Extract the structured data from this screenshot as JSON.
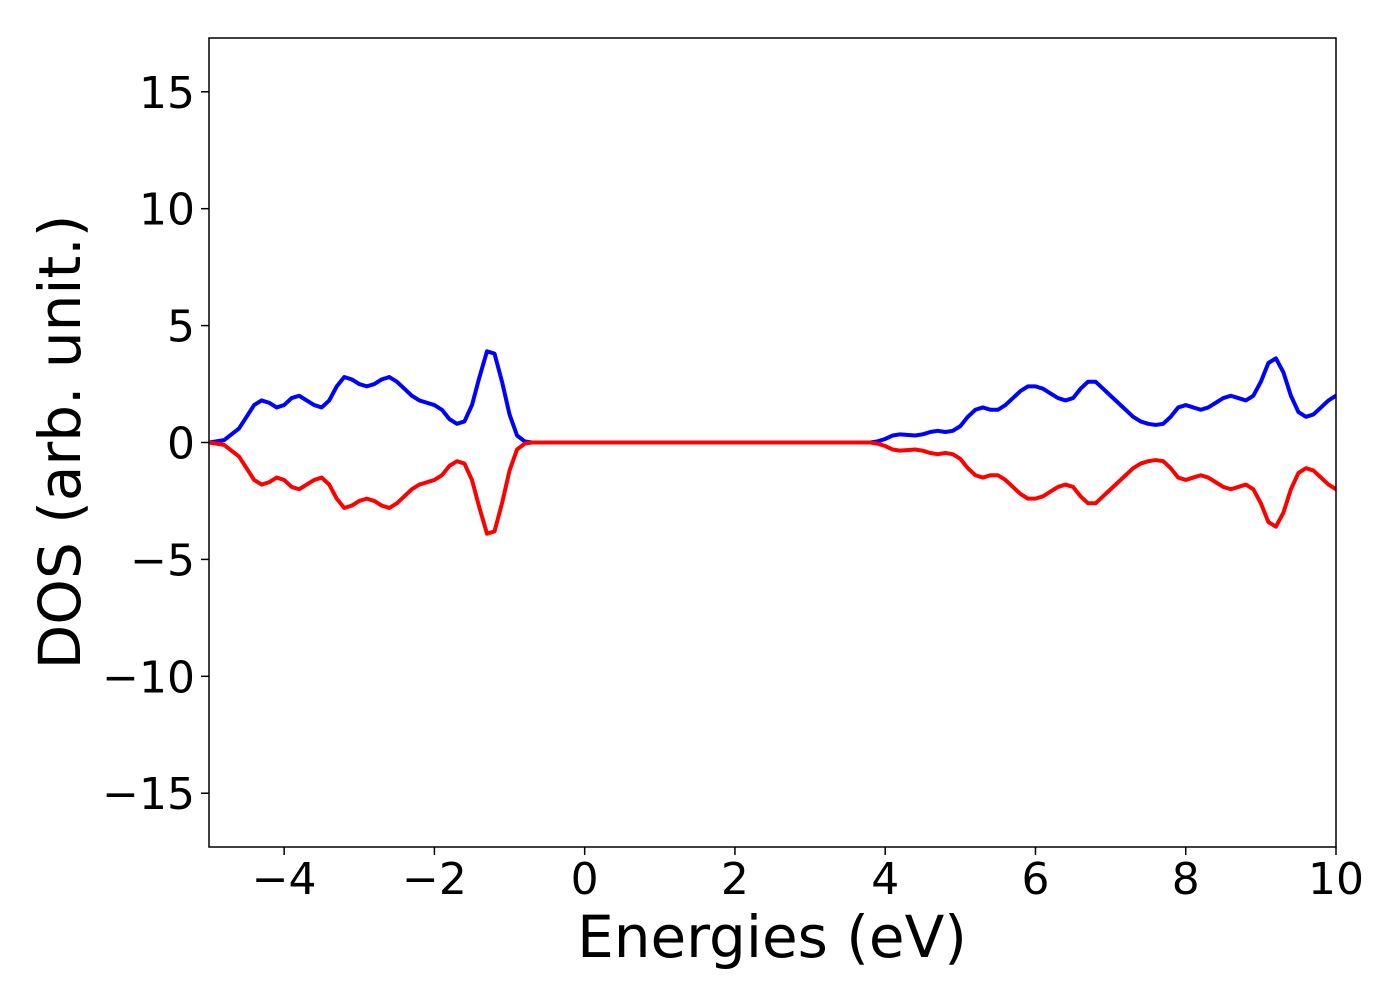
{
  "chart_data": {
    "type": "line",
    "title": "",
    "xlabel": "Energies (eV)",
    "ylabel": "DOS (arb. unit.)",
    "xlim": [
      -5,
      10
    ],
    "ylim": [
      -17.3,
      17.3
    ],
    "xticks": [
      -4,
      -2,
      0,
      2,
      4,
      6,
      8,
      10
    ],
    "xtick_labels": [
      "−4",
      "−2",
      "0",
      "2",
      "4",
      "6",
      "8",
      "10"
    ],
    "yticks": [
      15,
      10,
      5,
      0,
      -5,
      -10,
      -15
    ],
    "ytick_labels": [
      "15",
      "10",
      "5",
      "0",
      "−5",
      "−10",
      "−15"
    ],
    "grid": false,
    "legend": "none",
    "series": [
      {
        "color": "#0000ff",
        "x": [
          -5.0,
          -4.8,
          -4.6,
          -4.5,
          -4.4,
          -4.3,
          -4.2,
          -4.1,
          -4.0,
          -3.9,
          -3.8,
          -3.7,
          -3.6,
          -3.5,
          -3.4,
          -3.3,
          -3.2,
          -3.1,
          -3.0,
          -2.9,
          -2.8,
          -2.7,
          -2.6,
          -2.5,
          -2.4,
          -2.3,
          -2.2,
          -2.1,
          -2.0,
          -1.9,
          -1.8,
          -1.7,
          -1.6,
          -1.5,
          -1.4,
          -1.3,
          -1.2,
          -1.1,
          -1.0,
          -0.9,
          -0.8,
          -0.7,
          -0.6,
          -0.5,
          0.0,
          1.0,
          2.0,
          3.0,
          3.6,
          3.8,
          3.9,
          4.0,
          4.1,
          4.2,
          4.4,
          4.5,
          4.6,
          4.7,
          4.8,
          4.9,
          5.0,
          5.1,
          5.2,
          5.3,
          5.4,
          5.5,
          5.6,
          5.7,
          5.8,
          5.9,
          6.0,
          6.1,
          6.2,
          6.3,
          6.4,
          6.5,
          6.6,
          6.7,
          6.8,
          6.9,
          7.0,
          7.1,
          7.2,
          7.3,
          7.4,
          7.5,
          7.6,
          7.7,
          7.8,
          7.9,
          8.0,
          8.1,
          8.2,
          8.3,
          8.4,
          8.5,
          8.6,
          8.7,
          8.8,
          8.9,
          9.0,
          9.1,
          9.2,
          9.3,
          9.4,
          9.5,
          9.6,
          9.7,
          9.8,
          9.9,
          10.0
        ],
        "y": [
          0.0,
          0.1,
          0.6,
          1.1,
          1.6,
          1.8,
          1.7,
          1.5,
          1.6,
          1.9,
          2.0,
          1.8,
          1.6,
          1.5,
          1.8,
          2.4,
          2.8,
          2.7,
          2.5,
          2.4,
          2.5,
          2.7,
          2.8,
          2.6,
          2.3,
          2.0,
          1.8,
          1.7,
          1.6,
          1.4,
          1.0,
          0.8,
          0.9,
          1.6,
          2.8,
          3.9,
          3.8,
          2.6,
          1.2,
          0.3,
          0.05,
          0.0,
          0.0,
          0.0,
          0.0,
          0.0,
          0.0,
          0.0,
          0.0,
          0.0,
          0.05,
          0.15,
          0.3,
          0.35,
          0.3,
          0.35,
          0.45,
          0.5,
          0.45,
          0.5,
          0.7,
          1.1,
          1.4,
          1.5,
          1.4,
          1.4,
          1.6,
          1.9,
          2.2,
          2.4,
          2.4,
          2.3,
          2.1,
          1.9,
          1.8,
          1.9,
          2.3,
          2.6,
          2.6,
          2.3,
          2.0,
          1.7,
          1.4,
          1.1,
          0.9,
          0.8,
          0.75,
          0.8,
          1.1,
          1.5,
          1.6,
          1.5,
          1.4,
          1.5,
          1.7,
          1.9,
          2.0,
          1.9,
          1.8,
          2.0,
          2.6,
          3.4,
          3.6,
          3.0,
          2.0,
          1.3,
          1.1,
          1.2,
          1.5,
          1.8,
          2.0
        ]
      },
      {
        "color": "#ff0000",
        "x": [
          -5.0,
          -4.8,
          -4.6,
          -4.5,
          -4.4,
          -4.3,
          -4.2,
          -4.1,
          -4.0,
          -3.9,
          -3.8,
          -3.7,
          -3.6,
          -3.5,
          -3.4,
          -3.3,
          -3.2,
          -3.1,
          -3.0,
          -2.9,
          -2.8,
          -2.7,
          -2.6,
          -2.5,
          -2.4,
          -2.3,
          -2.2,
          -2.1,
          -2.0,
          -1.9,
          -1.8,
          -1.7,
          -1.6,
          -1.5,
          -1.4,
          -1.3,
          -1.2,
          -1.1,
          -1.0,
          -0.9,
          -0.8,
          -0.7,
          -0.6,
          -0.5,
          0.0,
          1.0,
          2.0,
          3.0,
          3.6,
          3.8,
          3.9,
          4.0,
          4.1,
          4.2,
          4.4,
          4.5,
          4.6,
          4.7,
          4.8,
          4.9,
          5.0,
          5.1,
          5.2,
          5.3,
          5.4,
          5.5,
          5.6,
          5.7,
          5.8,
          5.9,
          6.0,
          6.1,
          6.2,
          6.3,
          6.4,
          6.5,
          6.6,
          6.7,
          6.8,
          6.9,
          7.0,
          7.1,
          7.2,
          7.3,
          7.4,
          7.5,
          7.6,
          7.7,
          7.8,
          7.9,
          8.0,
          8.1,
          8.2,
          8.3,
          8.4,
          8.5,
          8.6,
          8.7,
          8.8,
          8.9,
          9.0,
          9.1,
          9.2,
          9.3,
          9.4,
          9.5,
          9.6,
          9.7,
          9.8,
          9.9,
          10.0
        ],
        "y": [
          0.0,
          -0.1,
          -0.6,
          -1.1,
          -1.6,
          -1.8,
          -1.7,
          -1.5,
          -1.6,
          -1.9,
          -2.0,
          -1.8,
          -1.6,
          -1.5,
          -1.8,
          -2.4,
          -2.8,
          -2.7,
          -2.5,
          -2.4,
          -2.5,
          -2.7,
          -2.8,
          -2.6,
          -2.3,
          -2.0,
          -1.8,
          -1.7,
          -1.6,
          -1.4,
          -1.0,
          -0.8,
          -0.9,
          -1.6,
          -2.8,
          -3.9,
          -3.8,
          -2.6,
          -1.2,
          -0.3,
          -0.05,
          0.0,
          0.0,
          0.0,
          0.0,
          0.0,
          0.0,
          0.0,
          0.0,
          0.0,
          -0.05,
          -0.15,
          -0.3,
          -0.35,
          -0.3,
          -0.35,
          -0.45,
          -0.5,
          -0.45,
          -0.5,
          -0.7,
          -1.1,
          -1.4,
          -1.5,
          -1.4,
          -1.4,
          -1.6,
          -1.9,
          -2.2,
          -2.4,
          -2.4,
          -2.3,
          -2.1,
          -1.9,
          -1.8,
          -1.9,
          -2.3,
          -2.6,
          -2.6,
          -2.3,
          -2.0,
          -1.7,
          -1.4,
          -1.1,
          -0.9,
          -0.8,
          -0.75,
          -0.8,
          -1.1,
          -1.5,
          -1.6,
          -1.5,
          -1.4,
          -1.5,
          -1.7,
          -1.9,
          -2.0,
          -1.9,
          -1.8,
          -2.0,
          -2.6,
          -3.4,
          -3.6,
          -3.0,
          -2.0,
          -1.3,
          -1.1,
          -1.2,
          -1.5,
          -1.8,
          -2.0
        ]
      }
    ]
  }
}
